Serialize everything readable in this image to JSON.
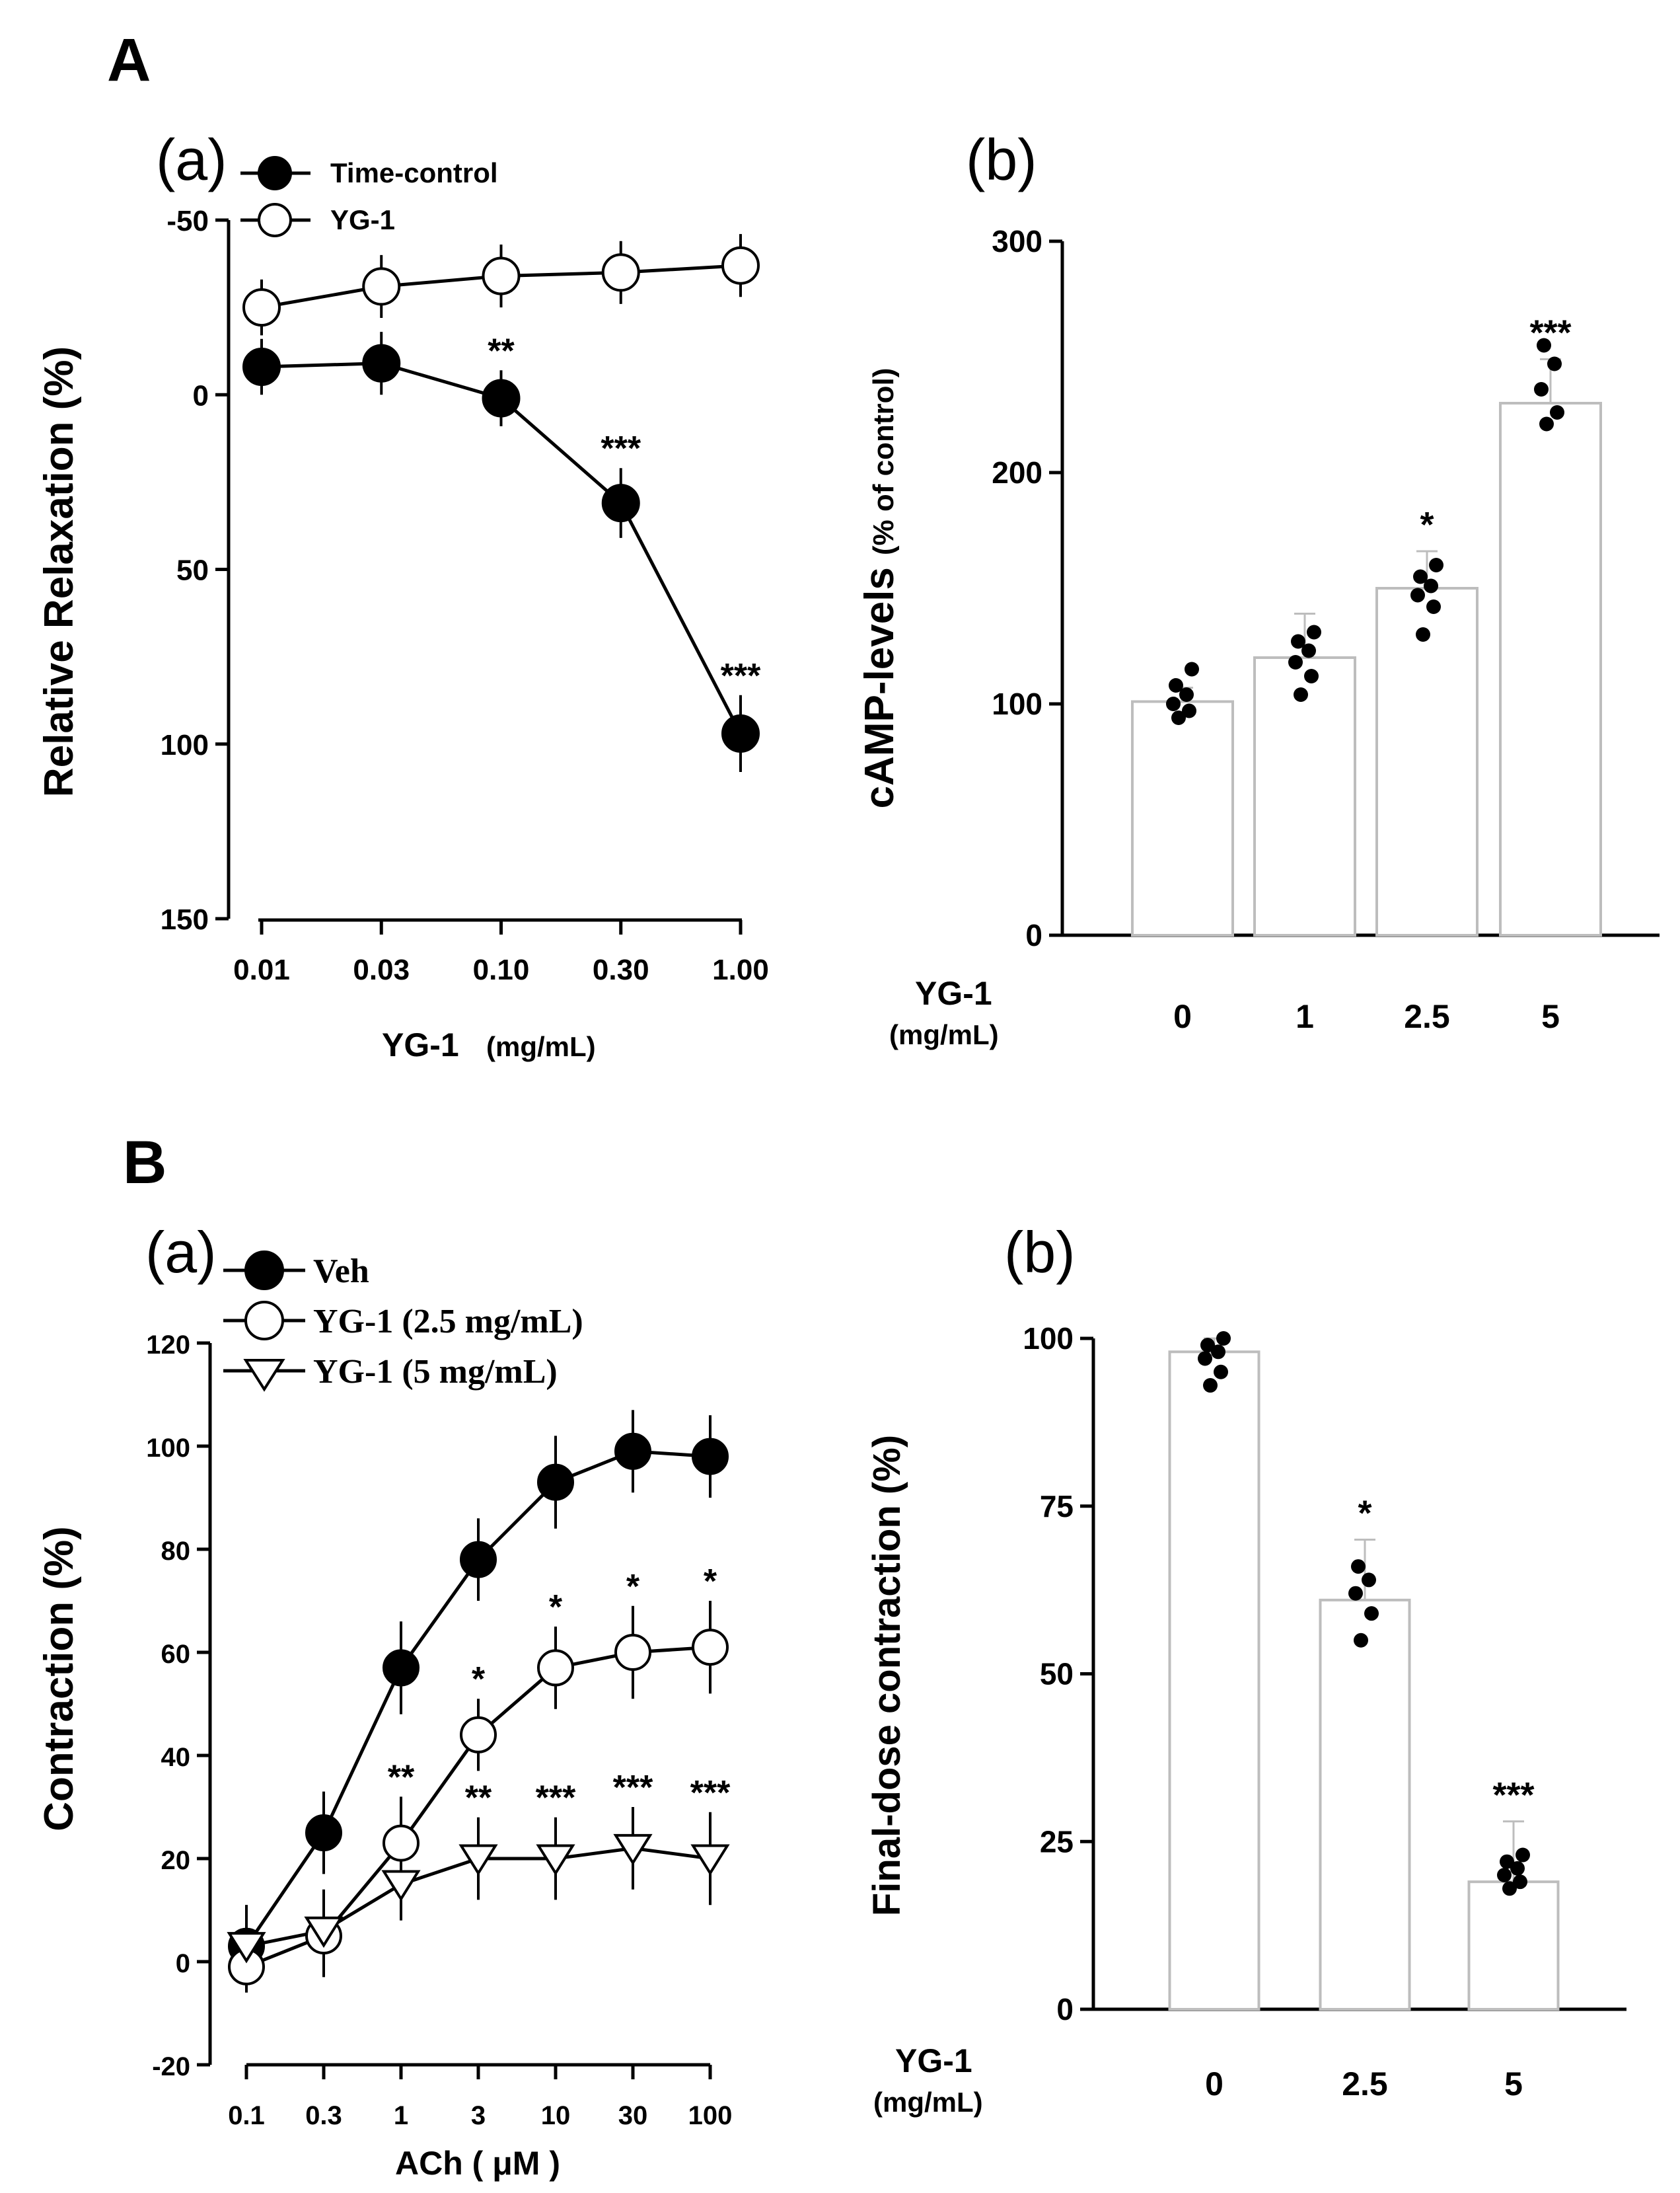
{
  "panel_labels": {
    "A": "A",
    "B": "B"
  },
  "chart_data": [
    {
      "id": "Aa",
      "type": "line",
      "panel": "(a)",
      "xlabel": "YG-1",
      "xunit": "(mg/mL)",
      "ylabel": "Relative Relaxation (%)",
      "categories": [
        "0.01",
        "0.03",
        "0.10",
        "0.30",
        "1.00"
      ],
      "y_tick_labels": [
        "-50",
        "0",
        "50",
        "100",
        "150"
      ],
      "ylim": [
        -50,
        150
      ],
      "y_inverted": true,
      "series": [
        {
          "name": "Time-control",
          "marker": "filled-circle",
          "values": [
            -8,
            -9,
            1,
            31,
            97
          ],
          "errors": [
            8,
            9,
            8,
            10,
            11
          ],
          "annotations": [
            "",
            "",
            "**",
            "***",
            "***"
          ]
        },
        {
          "name": "YG-1",
          "marker": "open-circle",
          "values": [
            -25,
            -31,
            -34,
            -35,
            -37
          ],
          "errors": [
            8,
            9,
            9,
            9,
            9
          ],
          "annotations": [
            "",
            "",
            "",
            "",
            ""
          ]
        }
      ]
    },
    {
      "id": "Ab",
      "type": "bar",
      "panel": "(b)",
      "xlabel": "YG-1",
      "xunit": "(mg/mL)",
      "ylabel_main": "cAMP-levels",
      "ylabel_unit": "(% of control)",
      "categories": [
        "0",
        "1",
        "2.5",
        "5"
      ],
      "values": [
        101,
        120,
        150,
        230
      ],
      "errors": [
        6,
        19,
        16,
        19
      ],
      "annotations": [
        "",
        "",
        "*",
        "***"
      ],
      "points": [
        [
          94,
          97,
          100,
          104,
          108,
          115
        ],
        [
          104,
          112,
          118,
          123,
          127,
          131
        ],
        [
          130,
          142,
          147,
          151,
          155,
          160
        ],
        [
          221,
          226,
          236,
          247,
          255
        ]
      ],
      "y_tick_labels": [
        "0",
        "100",
        "200",
        "300"
      ],
      "ylim": [
        0,
        300
      ]
    },
    {
      "id": "Ba",
      "type": "line",
      "panel": "(a)",
      "xlabel": "ACh ( μM )",
      "ylabel": "Contraction (%)",
      "categories": [
        "0.1",
        "0.3",
        "1",
        "3",
        "10",
        "30",
        "100"
      ],
      "y_tick_labels": [
        "-20",
        "0",
        "20",
        "40",
        "60",
        "80",
        "100",
        "120"
      ],
      "ylim": [
        -20,
        120
      ],
      "series": [
        {
          "name": "Veh",
          "marker": "filled-circle",
          "values": [
            3,
            25,
            57,
            78,
            93,
            99,
            98
          ],
          "errors": [
            8,
            8,
            9,
            8,
            9,
            8,
            8
          ],
          "annotations": [
            "",
            "",
            "",
            "",
            "",
            "",
            ""
          ]
        },
        {
          "name": "YG-1 (2.5 mg/mL)",
          "marker": "open-circle",
          "values": [
            -1,
            5,
            23,
            44,
            57,
            60,
            61
          ],
          "errors": [
            5,
            8,
            9,
            7,
            8,
            9,
            9
          ],
          "annotations": [
            "",
            "",
            "**",
            "*",
            "*",
            "*",
            "*"
          ]
        },
        {
          "name": "YG-1 (5 mg/mL)",
          "marker": "open-triangle-down",
          "values": [
            3,
            6,
            15,
            20,
            20,
            22,
            20
          ],
          "errors": [
            8,
            8,
            7,
            8,
            8,
            8,
            9
          ],
          "annotations": [
            "",
            "",
            "",
            "**",
            "***",
            "***",
            "***"
          ]
        }
      ]
    },
    {
      "id": "Bb",
      "type": "bar",
      "panel": "(b)",
      "xlabel": "YG-1",
      "xunit": "(mg/mL)",
      "ylabel": "Final-dose contraction (%)",
      "categories": [
        "0",
        "2.5",
        "5"
      ],
      "values": [
        98,
        61,
        19
      ],
      "errors": [
        2,
        9,
        9
      ],
      "annotations": [
        "",
        "*",
        "***"
      ],
      "points": [
        [
          93,
          95,
          97,
          98,
          99,
          100
        ],
        [
          55,
          59,
          62,
          64,
          66
        ],
        [
          18,
          19,
          20,
          21,
          22,
          23
        ]
      ],
      "y_tick_labels": [
        "0",
        "25",
        "50",
        "75",
        "100"
      ],
      "ylim": [
        0,
        100
      ]
    }
  ]
}
